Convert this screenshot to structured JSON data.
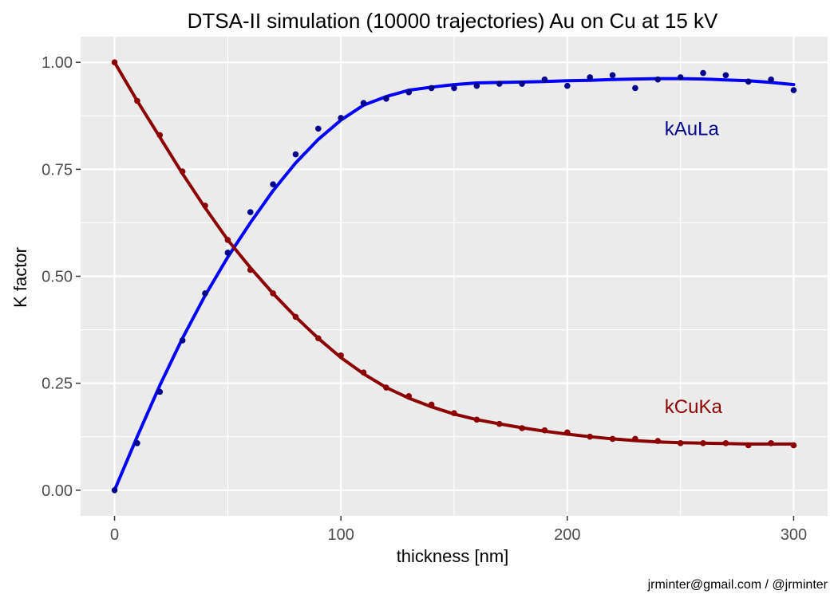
{
  "chart_data": {
    "type": "scatter",
    "title": "DTSA-II simulation (10000 trajectories) Au on Cu at 15 kV",
    "xlabel": "thickness [nm]",
    "ylabel": "K factor",
    "xlim": [
      -15,
      315
    ],
    "ylim": [
      -0.06,
      1.06
    ],
    "x_ticks": [
      0,
      100,
      200,
      300
    ],
    "x_tick_labels": [
      "0",
      "100",
      "200",
      "300"
    ],
    "y_ticks": [
      0,
      0.25,
      0.5,
      0.75,
      1.0
    ],
    "y_tick_labels": [
      "0.00",
      "0.25",
      "0.50",
      "0.75",
      "1.00"
    ],
    "grid": true,
    "legend": "none",
    "series": [
      {
        "name": "kAuLa",
        "color": "#00008B",
        "fit_color": "#0000FF",
        "label_x": 243,
        "label_y": 0.845,
        "x": [
          0,
          10,
          20,
          30,
          40,
          50,
          60,
          70,
          80,
          90,
          100,
          110,
          120,
          130,
          140,
          150,
          160,
          170,
          180,
          190,
          200,
          210,
          220,
          230,
          240,
          250,
          260,
          270,
          280,
          290,
          300
        ],
        "values": [
          0.0,
          0.11,
          0.23,
          0.35,
          0.46,
          0.555,
          0.65,
          0.715,
          0.785,
          0.845,
          0.87,
          0.905,
          0.915,
          0.93,
          0.94,
          0.94,
          0.945,
          0.95,
          0.95,
          0.96,
          0.945,
          0.965,
          0.97,
          0.94,
          0.96,
          0.965,
          0.975,
          0.97,
          0.955,
          0.96,
          0.935
        ],
        "fit_x": [
          0,
          10,
          20,
          30,
          40,
          50,
          60,
          70,
          80,
          90,
          100,
          110,
          120,
          130,
          140,
          150,
          160,
          170,
          180,
          190,
          200,
          210,
          220,
          230,
          240,
          250,
          260,
          270,
          280,
          290,
          300
        ],
        "fit_values": [
          0.0,
          0.125,
          0.245,
          0.355,
          0.455,
          0.545,
          0.625,
          0.7,
          0.765,
          0.82,
          0.865,
          0.9,
          0.92,
          0.935,
          0.942,
          0.948,
          0.952,
          0.953,
          0.954,
          0.955,
          0.957,
          0.958,
          0.96,
          0.961,
          0.962,
          0.962,
          0.961,
          0.959,
          0.957,
          0.953,
          0.948
        ]
      },
      {
        "name": "kCuKa",
        "color": "#8B0000",
        "fit_color": "#8B0000",
        "label_x": 243,
        "label_y": 0.195,
        "x": [
          0,
          10,
          20,
          30,
          40,
          50,
          60,
          70,
          80,
          90,
          100,
          110,
          120,
          130,
          140,
          150,
          160,
          170,
          180,
          190,
          200,
          210,
          220,
          230,
          240,
          250,
          260,
          270,
          280,
          290,
          300
        ],
        "values": [
          1.0,
          0.91,
          0.83,
          0.745,
          0.665,
          0.585,
          0.515,
          0.46,
          0.405,
          0.355,
          0.315,
          0.275,
          0.24,
          0.22,
          0.2,
          0.18,
          0.165,
          0.155,
          0.145,
          0.14,
          0.135,
          0.125,
          0.12,
          0.12,
          0.115,
          0.11,
          0.11,
          0.11,
          0.105,
          0.11,
          0.105
        ],
        "fit_x": [
          0,
          10,
          20,
          30,
          40,
          50,
          60,
          70,
          80,
          90,
          100,
          110,
          120,
          130,
          140,
          150,
          160,
          170,
          180,
          190,
          200,
          210,
          220,
          230,
          240,
          250,
          260,
          270,
          280,
          290,
          300
        ],
        "fit_values": [
          1.0,
          0.91,
          0.825,
          0.74,
          0.66,
          0.585,
          0.52,
          0.46,
          0.405,
          0.355,
          0.31,
          0.272,
          0.24,
          0.215,
          0.195,
          0.178,
          0.165,
          0.155,
          0.146,
          0.138,
          0.131,
          0.125,
          0.12,
          0.116,
          0.113,
          0.111,
          0.11,
          0.109,
          0.108,
          0.108,
          0.108
        ]
      }
    ]
  },
  "caption": "jrminter@gmail.com / @jrminter"
}
